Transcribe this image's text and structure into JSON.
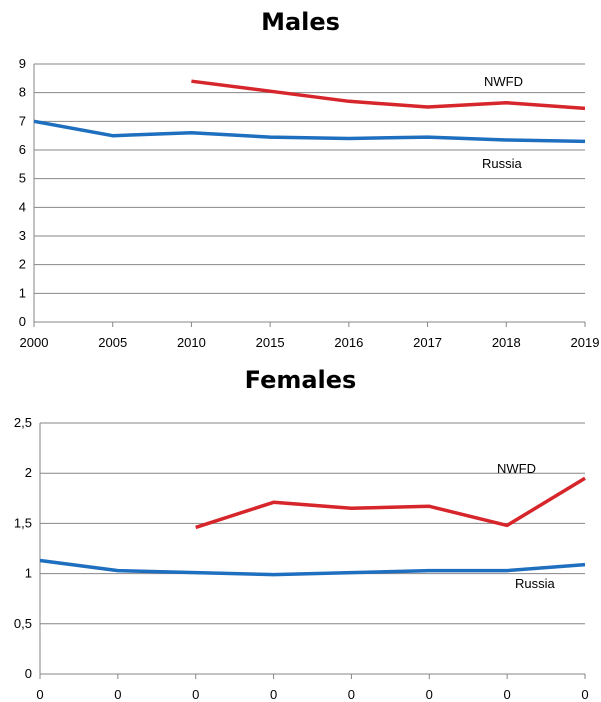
{
  "chart_data": [
    {
      "type": "line",
      "title": "Males",
      "categories": [
        "2000",
        "2005",
        "2010",
        "2015",
        "2016",
        "2017",
        "2018",
        "2019"
      ],
      "yticks": [
        "0",
        "1",
        "2",
        "3",
        "4",
        "5",
        "6",
        "7",
        "8",
        "9"
      ],
      "ylim": [
        0,
        9
      ],
      "grid": true,
      "series": [
        {
          "name": "NWFD",
          "color": "#d7262b",
          "values": [
            null,
            null,
            8.4,
            8.05,
            7.7,
            7.5,
            7.65,
            7.45
          ]
        },
        {
          "name": "Russia",
          "color": "#1f6fbf",
          "values": [
            7.0,
            6.5,
            6.6,
            6.45,
            6.4,
            6.45,
            6.35,
            6.3
          ]
        }
      ]
    },
    {
      "type": "line",
      "title": "Females",
      "categories": [
        "0",
        "0",
        "0",
        "0",
        "0",
        "0",
        "0",
        "0"
      ],
      "yticks": [
        "0",
        "0,5",
        "1",
        "1,5",
        "2",
        "2,5"
      ],
      "ylim": [
        0,
        2.5
      ],
      "grid": true,
      "series": [
        {
          "name": "NWFD",
          "color": "#d7262b",
          "values": [
            null,
            null,
            1.46,
            1.71,
            1.65,
            1.67,
            1.48,
            1.95
          ]
        },
        {
          "name": "Russia",
          "color": "#1f6fbf",
          "values": [
            1.13,
            1.03,
            1.01,
            0.99,
            1.01,
            1.03,
            1.03,
            1.09
          ]
        }
      ]
    }
  ]
}
